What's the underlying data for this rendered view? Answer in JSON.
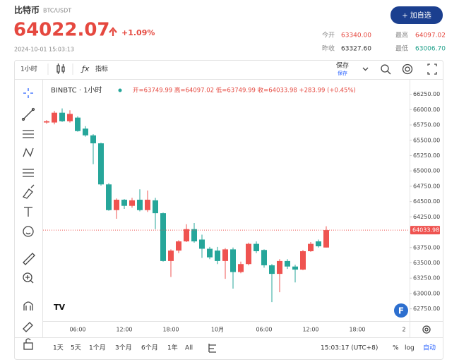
{
  "header": {
    "name": "比特币",
    "pair": "BTC/USDT",
    "price": "64022.07",
    "change": "+1.09%",
    "datetime": "2024-10-01 15:03:13",
    "button": "+ 加自选",
    "stats": [
      [
        "今开",
        "63340.00"
      ],
      [
        "最高",
        "64097.02"
      ],
      [
        "昨收",
        "63327.60"
      ],
      [
        "最低",
        "63006.70"
      ]
    ]
  },
  "toolbar": {
    "interval": "1小时",
    "indicators": "指标",
    "save": "保存",
    "save_sub": "保存"
  },
  "chart_data": {
    "type": "candlestick",
    "legend": "BINBTC · 1小时",
    "ohlc_text": "开=63749.99 高=64097.02 低=63749.99 收=64033.98 +283.99 (+0.45%)",
    "categories": [
      null,
      null,
      null,
      null,
      "06:00",
      null,
      null,
      null,
      null,
      null,
      "12:00",
      null,
      null,
      null,
      null,
      null,
      "18:00",
      null,
      null,
      null,
      null,
      null,
      "10月",
      null,
      null,
      null,
      null,
      null,
      "06:00",
      null,
      null,
      null,
      null,
      null,
      "12:00",
      null,
      null
    ],
    "extra_x_labels": [
      "18:00",
      "2"
    ],
    "open": [
      65790,
      65790,
      65950,
      65810,
      65870,
      65690,
      65580,
      65450,
      64780,
      64360,
      64530,
      64430,
      64530,
      64360,
      64520,
      64310,
      63530,
      63700,
      63850,
      64050,
      63880,
      63730,
      63700,
      63530,
      63720,
      63350,
      63480,
      63810,
      63710,
      63460,
      63320,
      63530,
      63440,
      63390,
      63690,
      63850,
      63749.99
    ],
    "high": [
      65830,
      65980,
      66020,
      65990,
      65890,
      65730,
      65600,
      65460,
      64800,
      64550,
      64540,
      64560,
      64700,
      64680,
      64560,
      64320,
      63720,
      63870,
      64130,
      64150,
      63960,
      63760,
      63760,
      63740,
      63750,
      63520,
      63830,
      63850,
      63720,
      63480,
      63560,
      63560,
      63470,
      63710,
      63840,
      63880,
      64097.02
    ],
    "low": [
      65770,
      65760,
      65800,
      65790,
      65640,
      65560,
      65110,
      64760,
      64350,
      64220,
      64380,
      64400,
      64340,
      64330,
      64050,
      63520,
      63270,
      63660,
      63840,
      63830,
      63580,
      63560,
      63480,
      63240,
      63080,
      63330,
      63460,
      63660,
      63420,
      62860,
      63020,
      63400,
      63180,
      63380,
      63680,
      63750,
      63749.99
    ],
    "close": [
      65810,
      65950,
      65810,
      65930,
      65650,
      65580,
      65450,
      64780,
      64360,
      64530,
      64430,
      64520,
      64360,
      64530,
      64310,
      63530,
      63700,
      63850,
      64050,
      63850,
      63730,
      63590,
      63530,
      63720,
      63350,
      63480,
      63810,
      63690,
      63460,
      63320,
      63530,
      63440,
      63390,
      63690,
      63810,
      63770,
      64033.98
    ],
    "up_color": "#ef5350",
    "down_color": "#26a69a",
    "ylim": [
      62550,
      66430
    ],
    "yticks": [
      {
        "value": 62750,
        "label": "62750.00"
      },
      {
        "value": 63000,
        "label": "63000.00"
      },
      {
        "value": 63250,
        "label": "63250.00"
      },
      {
        "value": 63500,
        "label": "63500.00"
      },
      {
        "value": 63750,
        "label": "63750.00"
      },
      {
        "value": 64000,
        "label": "64000.00"
      },
      {
        "value": 64250,
        "label": "64250.00"
      },
      {
        "value": 64500,
        "label": "64500.00"
      },
      {
        "value": 64750,
        "label": "64750.00"
      },
      {
        "value": 65000,
        "label": "65000.00"
      },
      {
        "value": 65250,
        "label": "65250.00"
      },
      {
        "value": 65500,
        "label": "65500.00"
      },
      {
        "value": 65750,
        "label": "65750.00"
      },
      {
        "value": 66000,
        "label": "66000.00"
      },
      {
        "value": 66250,
        "label": "66250.00"
      }
    ],
    "last_price_line": true
  },
  "footer": {
    "ranges": [
      "1天",
      "5天",
      "1个月",
      "3个月",
      "6个月",
      "1年",
      "All"
    ],
    "clock": "15:03:17 (UTC+8)",
    "percent": "%",
    "log": "log",
    "auto": "自动"
  }
}
